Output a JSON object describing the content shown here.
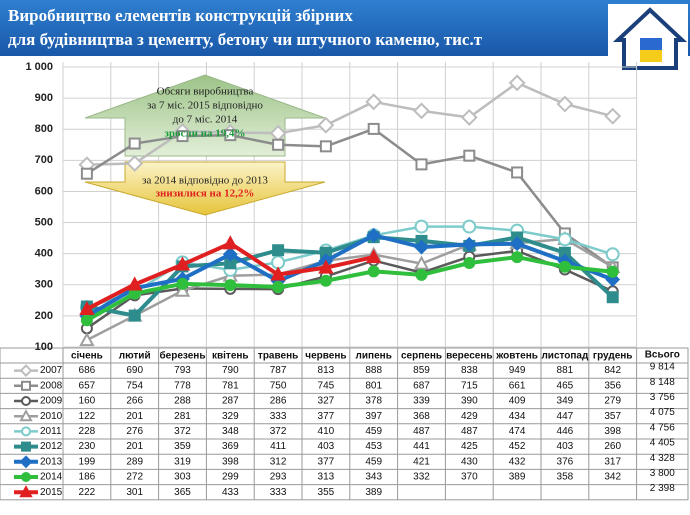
{
  "chart_data": {
    "type": "line",
    "title": [
      "Виробництво елементів конструкцій збірних",
      "для будівництва з цементу, бетону чи штучного каменю, тис.т"
    ],
    "categories": [
      "січень",
      "лютий",
      "березень",
      "квітень",
      "травень",
      "червень",
      "липень",
      "серпень",
      "вересень",
      "жовтень",
      "листопад",
      "грудень"
    ],
    "total_header": "Всього",
    "ylim": [
      100,
      1000
    ],
    "yticks": [
      100,
      200,
      300,
      400,
      500,
      600,
      700,
      800,
      900,
      {
        "value": 1000,
        "label": "1 000"
      }
    ],
    "grid": true,
    "annotations": {
      "growth": [
        "Обсяги виробництва",
        "за 7 міс. 2015 відповідно",
        "до 7 міс. 2014",
        "зросли на 19,4%"
      ],
      "decline": [
        "за 2014 відповідно до 2013",
        "знизилися на 12,2%"
      ]
    },
    "series": [
      {
        "name": "2007",
        "color": "#bdbdbd",
        "marker": "diamond",
        "hollow": true,
        "values": [
          686,
          690,
          793,
          790,
          787,
          813,
          888,
          859,
          838,
          949,
          881,
          842
        ],
        "total": 9814,
        "total_label": "9 814"
      },
      {
        "name": "2008",
        "color": "#8c8c8c",
        "marker": "square",
        "hollow": true,
        "values": [
          657,
          754,
          778,
          781,
          750,
          745,
          801,
          687,
          715,
          661,
          465,
          356
        ],
        "total": 8148,
        "total_label": "8 148"
      },
      {
        "name": "2009",
        "color": "#5a5a5a",
        "marker": "circle",
        "hollow": true,
        "values": [
          160,
          266,
          288,
          287,
          286,
          327,
          378,
          339,
          390,
          409,
          349,
          279
        ],
        "total": 3756,
        "total_label": "3 756"
      },
      {
        "name": "2010",
        "color": "#9e9e9e",
        "marker": "triangle",
        "hollow": true,
        "values": [
          122,
          201,
          281,
          329,
          333,
          377,
          397,
          368,
          429,
          434,
          447,
          357
        ],
        "total": 4075,
        "total_label": "4 075"
      },
      {
        "name": "2011",
        "color": "#7ecbcb",
        "marker": "circle",
        "hollow": true,
        "values": [
          228,
          276,
          372,
          348,
          372,
          410,
          459,
          487,
          487,
          474,
          446,
          398
        ],
        "total": 4756,
        "total_label": "4 756"
      },
      {
        "name": "2012",
        "color": "#2f8c8c",
        "marker": "square",
        "hollow": false,
        "values": [
          230,
          201,
          359,
          369,
          411,
          403,
          453,
          441,
          425,
          452,
          403,
          260
        ],
        "total": 4405,
        "total_label": "4 405"
      },
      {
        "name": "2013",
        "color": "#1f6fc4",
        "marker": "diamond",
        "hollow": false,
        "values": [
          199,
          289,
          319,
          398,
          312,
          377,
          459,
          421,
          430,
          432,
          376,
          317
        ],
        "total": 4328,
        "total_label": "4 328"
      },
      {
        "name": "2014",
        "color": "#2fbf3c",
        "marker": "circle",
        "hollow": false,
        "values": [
          186,
          272,
          303,
          299,
          293,
          313,
          343,
          332,
          370,
          389,
          358,
          342
        ],
        "total": 3800,
        "total_label": "3 800"
      },
      {
        "name": "2015",
        "color": "#e02020",
        "marker": "triangle",
        "hollow": false,
        "values": [
          222,
          301,
          365,
          433,
          333,
          355,
          389,
          null,
          null,
          null,
          null,
          null
        ],
        "total": 2398,
        "total_label": "2 398"
      }
    ]
  }
}
